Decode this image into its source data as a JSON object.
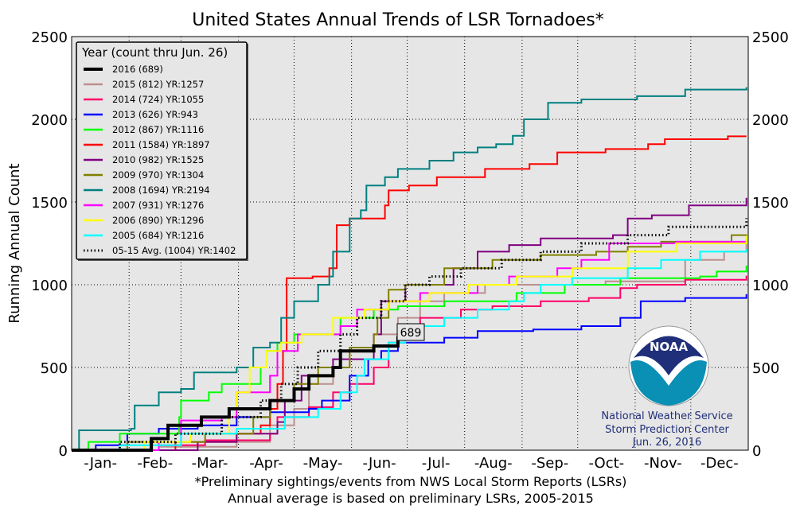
{
  "chart_data": {
    "type": "line",
    "title": "United States Annual Trends of LSR Tornadoes*",
    "ylabel": "Running Annual Count",
    "xlabel": "",
    "ylim": [
      0,
      2500
    ],
    "yticks": [
      0,
      500,
      1000,
      1500,
      2000,
      2500
    ],
    "xticks": [
      "-Jan-",
      "-Feb-",
      "-Mar-",
      "-Apr-",
      "-May-",
      "-Jun-",
      "-Jul-",
      "-Aug-",
      "-Sep-",
      "-Oct-",
      "-Nov-",
      "-Dec-"
    ],
    "grid": true,
    "legend_title": "Year (count thru Jun. 26)",
    "legend_placement": "top-left",
    "current_label": "689",
    "footnote1": "*Preliminary sightings/events from NWS Local Storm Reports (LSRs)",
    "footnote2": "Annual average is based on preliminary LSRs, 2005-2015",
    "credit": [
      "National Weather Service",
      "Storm Prediction Center",
      "Jun. 26, 2016"
    ],
    "logo_text": "NOAA",
    "series": [
      {
        "name": "2016 (689)",
        "color": "#000000",
        "width": 4,
        "points": [
          [
            "01-01",
            0
          ],
          [
            "02-13",
            70
          ],
          [
            "02-22",
            150
          ],
          [
            "03-12",
            200
          ],
          [
            "03-27",
            250
          ],
          [
            "04-18",
            300
          ],
          [
            "05-01",
            370
          ],
          [
            "05-09",
            450
          ],
          [
            "05-22",
            500
          ],
          [
            "05-26",
            600
          ],
          [
            "06-13",
            630
          ],
          [
            "06-26",
            689
          ]
        ]
      },
      {
        "name": "2015 (812) YR:1257",
        "color": "#bc8f8f",
        "width": 2,
        "points": [
          [
            "01-01",
            0
          ],
          [
            "02-17",
            20
          ],
          [
            "03-31",
            50
          ],
          [
            "04-18",
            150
          ],
          [
            "05-01",
            250
          ],
          [
            "05-09",
            400
          ],
          [
            "05-22",
            500
          ],
          [
            "05-31",
            600
          ],
          [
            "06-13",
            700
          ],
          [
            "06-26",
            800
          ],
          [
            "07-08",
            900
          ],
          [
            "07-21",
            950
          ],
          [
            "08-12",
            1000
          ],
          [
            "09-11",
            1000
          ],
          [
            "10-16",
            1020
          ],
          [
            "11-28",
            1150
          ],
          [
            "12-19",
            1200
          ],
          [
            "12-31",
            1257
          ]
        ]
      },
      {
        "name": "2014 (724) YR:1055",
        "color": "#ff0066",
        "width": 2,
        "points": [
          [
            "01-01",
            0
          ],
          [
            "02-17",
            30
          ],
          [
            "03-14",
            60
          ],
          [
            "04-18",
            100
          ],
          [
            "04-22",
            200
          ],
          [
            "05-09",
            260
          ],
          [
            "05-22",
            350
          ],
          [
            "05-31",
            400
          ],
          [
            "06-13",
            500
          ],
          [
            "06-21",
            650
          ],
          [
            "06-26",
            750
          ],
          [
            "07-08",
            800
          ],
          [
            "07-30",
            850
          ],
          [
            "08-16",
            870
          ],
          [
            "09-11",
            900
          ],
          [
            "10-07",
            920
          ],
          [
            "10-24",
            980
          ],
          [
            "11-02",
            1000
          ],
          [
            "11-28",
            1030
          ],
          [
            "12-31",
            1055
          ]
        ]
      },
      {
        "name": "2013 (626) YR:943",
        "color": "#0000ff",
        "width": 2,
        "points": [
          [
            "01-01",
            0
          ],
          [
            "01-14",
            30
          ],
          [
            "01-31",
            100
          ],
          [
            "02-17",
            130
          ],
          [
            "03-10",
            150
          ],
          [
            "03-31",
            200
          ],
          [
            "04-18",
            230
          ],
          [
            "05-09",
            250
          ],
          [
            "05-16",
            300
          ],
          [
            "05-31",
            450
          ],
          [
            "06-10",
            550
          ],
          [
            "06-17",
            600
          ],
          [
            "06-26",
            650
          ],
          [
            "07-21",
            680
          ],
          [
            "08-08",
            720
          ],
          [
            "09-07",
            730
          ],
          [
            "10-03",
            750
          ],
          [
            "10-24",
            800
          ],
          [
            "11-04",
            900
          ],
          [
            "11-28",
            920
          ],
          [
            "12-31",
            943
          ]
        ]
      },
      {
        "name": "2012 (867) YR:1116",
        "color": "#00ff00",
        "width": 2,
        "points": [
          [
            "01-01",
            0
          ],
          [
            "01-10",
            50
          ],
          [
            "01-27",
            100
          ],
          [
            "02-28",
            200
          ],
          [
            "03-01",
            300
          ],
          [
            "03-16",
            350
          ],
          [
            "03-23",
            400
          ],
          [
            "04-13",
            500
          ],
          [
            "04-16",
            600
          ],
          [
            "04-22",
            650
          ],
          [
            "05-01",
            700
          ],
          [
            "05-26",
            800
          ],
          [
            "06-13",
            850
          ],
          [
            "06-26",
            870
          ],
          [
            "07-21",
            900
          ],
          [
            "08-29",
            950
          ],
          [
            "09-24",
            1000
          ],
          [
            "10-24",
            1040
          ],
          [
            "12-06",
            1050
          ],
          [
            "12-15",
            1080
          ],
          [
            "12-31",
            1116
          ]
        ]
      },
      {
        "name": "2011 (1584) YR:1897",
        "color": "#ff0000",
        "width": 2,
        "points": [
          [
            "01-01",
            0
          ],
          [
            "02-26",
            50
          ],
          [
            "03-31",
            100
          ],
          [
            "04-13",
            150
          ],
          [
            "04-18",
            250
          ],
          [
            "04-22",
            400
          ],
          [
            "04-25",
            600
          ],
          [
            "04-27",
            1040
          ],
          [
            "05-11",
            1050
          ],
          [
            "05-20",
            1100
          ],
          [
            "05-24",
            1360
          ],
          [
            "05-31",
            1400
          ],
          [
            "06-19",
            1480
          ],
          [
            "06-21",
            1570
          ],
          [
            "07-02",
            1600
          ],
          [
            "07-17",
            1650
          ],
          [
            "08-12",
            1700
          ],
          [
            "09-05",
            1730
          ],
          [
            "09-20",
            1800
          ],
          [
            "10-16",
            1820
          ],
          [
            "11-08",
            1850
          ],
          [
            "11-17",
            1880
          ],
          [
            "12-21",
            1897
          ],
          [
            "12-31",
            1897
          ]
        ]
      },
      {
        "name": "2010 (982) YR:1525",
        "color": "#800080",
        "width": 2,
        "points": [
          [
            "01-01",
            0
          ],
          [
            "02-09",
            0
          ],
          [
            "03-10",
            50
          ],
          [
            "03-31",
            100
          ],
          [
            "04-22",
            170
          ],
          [
            "04-26",
            300
          ],
          [
            "05-05",
            450
          ],
          [
            "05-22",
            550
          ],
          [
            "06-13",
            700
          ],
          [
            "06-17",
            900
          ],
          [
            "06-30",
            1000
          ],
          [
            "07-26",
            1100
          ],
          [
            "08-08",
            1200
          ],
          [
            "08-25",
            1240
          ],
          [
            "09-11",
            1280
          ],
          [
            "10-20",
            1300
          ],
          [
            "10-28",
            1400
          ],
          [
            "11-10",
            1420
          ],
          [
            "11-30",
            1480
          ],
          [
            "12-31",
            1525
          ]
        ]
      },
      {
        "name": "2009 (970) YR:1304",
        "color": "#808000",
        "width": 2,
        "points": [
          [
            "01-01",
            0
          ],
          [
            "01-31",
            50
          ],
          [
            "03-14",
            100
          ],
          [
            "04-09",
            200
          ],
          [
            "04-18",
            300
          ],
          [
            "05-01",
            400
          ],
          [
            "05-14",
            500
          ],
          [
            "05-31",
            620
          ],
          [
            "06-13",
            700
          ],
          [
            "06-15",
            800
          ],
          [
            "06-21",
            970
          ],
          [
            "06-30",
            1000
          ],
          [
            "07-21",
            1100
          ],
          [
            "08-16",
            1150
          ],
          [
            "09-11",
            1180
          ],
          [
            "10-11",
            1200
          ],
          [
            "10-28",
            1230
          ],
          [
            "11-15",
            1260
          ],
          [
            "12-23",
            1300
          ],
          [
            "12-31",
            1304
          ]
        ]
      },
      {
        "name": "2008 (1694) YR:2194",
        "color": "#008080",
        "width": 2,
        "points": [
          [
            "01-01",
            0
          ],
          [
            "01-05",
            120
          ],
          [
            "02-02",
            130
          ],
          [
            "02-04",
            270
          ],
          [
            "02-17",
            350
          ],
          [
            "03-01",
            370
          ],
          [
            "03-08",
            470
          ],
          [
            "03-31",
            500
          ],
          [
            "04-09",
            620
          ],
          [
            "04-18",
            650
          ],
          [
            "04-24",
            800
          ],
          [
            "05-01",
            900
          ],
          [
            "05-14",
            1000
          ],
          [
            "05-20",
            1050
          ],
          [
            "05-22",
            1200
          ],
          [
            "05-31",
            1400
          ],
          [
            "06-06",
            1450
          ],
          [
            "06-09",
            1600
          ],
          [
            "06-19",
            1650
          ],
          [
            "06-26",
            1700
          ],
          [
            "07-06",
            1700
          ],
          [
            "07-13",
            1750
          ],
          [
            "07-26",
            1800
          ],
          [
            "08-08",
            1830
          ],
          [
            "08-18",
            1850
          ],
          [
            "08-27",
            1900
          ],
          [
            "09-02",
            2000
          ],
          [
            "09-15",
            2100
          ],
          [
            "10-03",
            2120
          ],
          [
            "11-02",
            2140
          ],
          [
            "11-28",
            2180
          ],
          [
            "12-31",
            2194
          ]
        ]
      },
      {
        "name": "2007 (931) YR:1276",
        "color": "#ff00ff",
        "width": 2,
        "points": [
          [
            "01-01",
            0
          ],
          [
            "02-17",
            50
          ],
          [
            "03-01",
            180
          ],
          [
            "03-23",
            200
          ],
          [
            "03-31",
            350
          ],
          [
            "04-18",
            450
          ],
          [
            "04-22",
            600
          ],
          [
            "05-03",
            700
          ],
          [
            "05-26",
            750
          ],
          [
            "06-04",
            850
          ],
          [
            "06-21",
            900
          ],
          [
            "07-08",
            950
          ],
          [
            "08-08",
            1000
          ],
          [
            "08-25",
            1050
          ],
          [
            "09-20",
            1100
          ],
          [
            "10-03",
            1150
          ],
          [
            "10-18",
            1250
          ],
          [
            "11-23",
            1260
          ],
          [
            "12-31",
            1276
          ]
        ]
      },
      {
        "name": "2006 (890) YR:1296",
        "color": "#ffff00",
        "width": 2,
        "points": [
          [
            "01-01",
            0
          ],
          [
            "02-09",
            50
          ],
          [
            "03-06",
            100
          ],
          [
            "03-27",
            250
          ],
          [
            "03-31",
            350
          ],
          [
            "04-07",
            500
          ],
          [
            "04-16",
            600
          ],
          [
            "04-24",
            650
          ],
          [
            "05-05",
            700
          ],
          [
            "05-22",
            800
          ],
          [
            "06-08",
            850
          ],
          [
            "06-21",
            900
          ],
          [
            "07-13",
            950
          ],
          [
            "08-03",
            1000
          ],
          [
            "08-29",
            1050
          ],
          [
            "09-28",
            1100
          ],
          [
            "10-28",
            1200
          ],
          [
            "11-23",
            1250
          ],
          [
            "12-31",
            1296
          ]
        ]
      },
      {
        "name": "2005 (684) YR:1216",
        "color": "#00ffff",
        "width": 2,
        "points": [
          [
            "01-01",
            0
          ],
          [
            "01-27",
            30
          ],
          [
            "03-01",
            100
          ],
          [
            "03-31",
            130
          ],
          [
            "04-26",
            200
          ],
          [
            "05-14",
            250
          ],
          [
            "05-26",
            350
          ],
          [
            "06-04",
            450
          ],
          [
            "06-08",
            550
          ],
          [
            "06-21",
            650
          ],
          [
            "06-30",
            700
          ],
          [
            "07-08",
            750
          ],
          [
            "07-21",
            800
          ],
          [
            "08-08",
            850
          ],
          [
            "08-25",
            900
          ],
          [
            "09-02",
            950
          ],
          [
            "09-11",
            1000
          ],
          [
            "09-28",
            1040
          ],
          [
            "10-28",
            1100
          ],
          [
            "11-15",
            1150
          ],
          [
            "12-06",
            1200
          ],
          [
            "12-31",
            1216
          ]
        ]
      },
      {
        "name": "05-15 Avg. (1004) YR:1402",
        "color": "#000000",
        "width": 2,
        "dotted": true,
        "points": [
          [
            "01-01",
            0
          ],
          [
            "01-27",
            50
          ],
          [
            "02-26",
            100
          ],
          [
            "03-23",
            200
          ],
          [
            "04-13",
            300
          ],
          [
            "04-24",
            400
          ],
          [
            "05-03",
            500
          ],
          [
            "05-14",
            600
          ],
          [
            "05-26",
            700
          ],
          [
            "06-04",
            800
          ],
          [
            "06-17",
            900
          ],
          [
            "06-30",
            1000
          ],
          [
            "07-13",
            1050
          ],
          [
            "07-30",
            1100
          ],
          [
            "08-21",
            1150
          ],
          [
            "09-11",
            1200
          ],
          [
            "10-03",
            1250
          ],
          [
            "10-28",
            1300
          ],
          [
            "11-19",
            1350
          ],
          [
            "12-31",
            1402
          ]
        ]
      }
    ]
  }
}
